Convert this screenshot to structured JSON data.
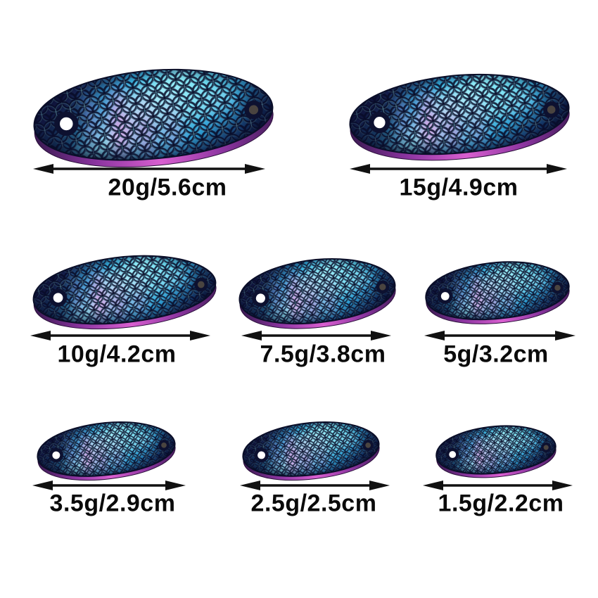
{
  "background_color": "#ffffff",
  "colors": {
    "body_dark_navy": "#11163a",
    "body_mid_blue": "#2fa9d8",
    "body_bright_cyan": "#8deef8",
    "body_teal": "#2f9fd4",
    "body_deep_edge": "#0c1232",
    "streak_pink": "#f586dc",
    "streak_magenta": "#e06cc8",
    "sheen_cyan": "#b5f4ff",
    "rim_purple_dark": "#3a1a52",
    "rim_magenta": "#d95fd0",
    "rim_purple": "#8c35a0",
    "scale_line": "#070a26",
    "hole_ring": "#0d1130",
    "hole_left_fill": "#ffffff",
    "hole_right_fill": "#4a4440",
    "arrow_black": "#111111",
    "label_black": "#0a0a0a"
  },
  "product": {
    "description": "fishing spoon lures size chart",
    "items": [
      {
        "label": "20g/5.6cm",
        "weight_g": 20,
        "length_cm": 5.6
      },
      {
        "label": "15g/4.9cm",
        "weight_g": 15,
        "length_cm": 4.9
      },
      {
        "label": "10g/4.2cm",
        "weight_g": 10,
        "length_cm": 4.2
      },
      {
        "label": "7.5g/3.8cm",
        "weight_g": 7.5,
        "length_cm": 3.8
      },
      {
        "label": "5g/3.2cm",
        "weight_g": 5,
        "length_cm": 3.2
      },
      {
        "label": "3.5g/2.9cm",
        "weight_g": 3.5,
        "length_cm": 2.9
      },
      {
        "label": "2.5g/2.5cm",
        "weight_g": 2.5,
        "length_cm": 2.5
      },
      {
        "label": "1.5g/2.2cm",
        "weight_g": 1.5,
        "length_cm": 2.2
      }
    ]
  }
}
